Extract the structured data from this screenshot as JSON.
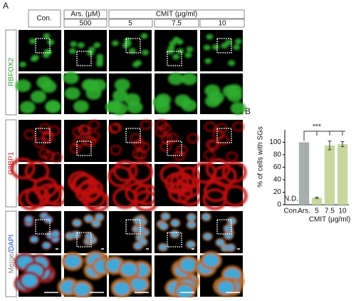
{
  "panel_a": {
    "label": "A",
    "columns": {
      "control": "Con.",
      "arsenite": "Ars. (μM)",
      "cmit": "CMIT (μg/ml)"
    },
    "doses": [
      "500",
      "5",
      "7.5",
      "10"
    ],
    "rows": [
      "RBFOX2",
      "G3BP1"
    ],
    "merge": "Merge",
    "dapi": "/DAPI"
  },
  "panel_b": {
    "label": "B"
  },
  "chart_data": {
    "type": "bar",
    "y_label": "% of cells with SGs",
    "categories": [
      "Con.",
      "Ars.",
      "5",
      "7.5",
      "10"
    ],
    "group_label": "CMIT (μg/ml)",
    "values": [
      null,
      100,
      11,
      95,
      97
    ],
    "errors": [
      null,
      0,
      1,
      7,
      4
    ],
    "value_labels": [
      "N.D.",
      null,
      null,
      null,
      null
    ],
    "colors": [
      "#a7aeac",
      "#a7aeac",
      "#c9d69e",
      "#c9d69e",
      "#c9d69e"
    ],
    "significance": "***",
    "ylim": [
      0,
      120
    ],
    "yticks": [
      0,
      20,
      40,
      60,
      80,
      100
    ]
  }
}
